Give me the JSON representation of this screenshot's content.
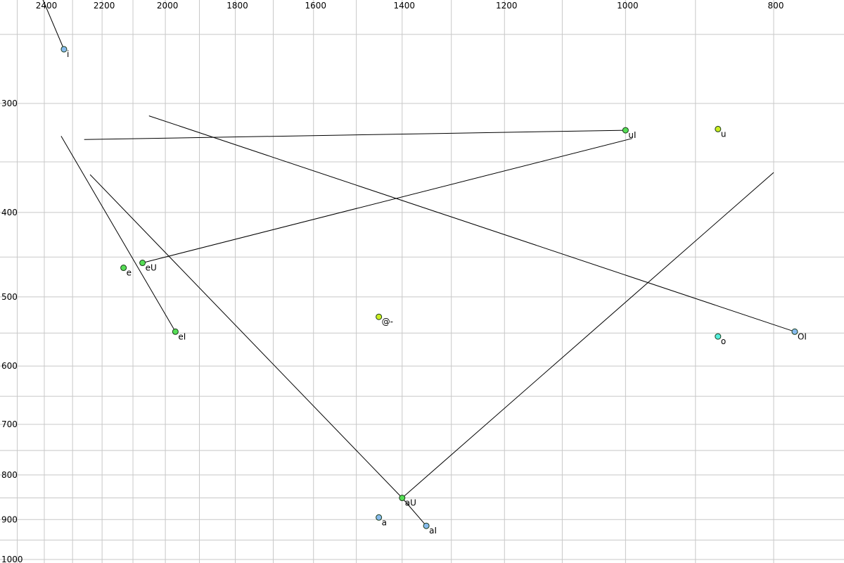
{
  "chart_data": {
    "type": "scatter",
    "title": "",
    "xlabel": "",
    "ylabel": "",
    "x_reversed": true,
    "y_reversed": true,
    "x_scale": "log",
    "y_scale": "log",
    "x_ticks": [
      2400,
      2200,
      2000,
      1800,
      1600,
      1400,
      1200,
      1000,
      800
    ],
    "y_ticks": [
      300,
      400,
      500,
      600,
      700,
      800,
      900,
      1000
    ],
    "grid": true,
    "colors": {
      "green": "#55dd55",
      "yellow": "#ccee22",
      "blue": "#88bbee",
      "cyan": "#55eedd"
    },
    "points": [
      {
        "label": "i",
        "f2": 2330,
        "f1": 260,
        "color": "blue"
      },
      {
        "label": "uI",
        "f2": 1000,
        "f1": 322,
        "color": "green"
      },
      {
        "label": "u",
        "f2": 870,
        "f1": 321,
        "color": "yellow"
      },
      {
        "label": "eU",
        "f2": 2070,
        "f1": 457,
        "color": "green"
      },
      {
        "label": "e",
        "f2": 2130,
        "f1": 463,
        "color": "green"
      },
      {
        "label": "eI",
        "f2": 1970,
        "f1": 548,
        "color": "green"
      },
      {
        "label": "@-",
        "f2": 1450,
        "f1": 527,
        "color": "yellow"
      },
      {
        "label": "OI",
        "f2": 775,
        "f1": 548,
        "color": "blue"
      },
      {
        "label": "o",
        "f2": 870,
        "f1": 555,
        "color": "cyan"
      },
      {
        "label": "aU",
        "f2": 1400,
        "f1": 850,
        "color": "green"
      },
      {
        "label": "a",
        "f2": 1450,
        "f1": 895,
        "color": "blue"
      },
      {
        "label": "aI",
        "f2": 1350,
        "f1": 915,
        "color": "blue"
      }
    ],
    "trajectories": [
      {
        "label": "i",
        "points": [
          [
            2440,
            215
          ],
          [
            2330,
            260
          ]
        ]
      },
      {
        "label": "uI",
        "points": [
          [
            2260,
            330
          ],
          [
            1000,
            322
          ]
        ]
      },
      {
        "label": "eU",
        "points": [
          [
            2070,
            457
          ],
          [
            990,
            329
          ]
        ]
      },
      {
        "label": "eI",
        "points": [
          [
            2340,
            327
          ],
          [
            1970,
            548
          ]
        ]
      },
      {
        "label": "aU",
        "points": [
          [
            2240,
            362
          ],
          [
            1400,
            850
          ]
        ]
      },
      {
        "label": "aU",
        "points": [
          [
            1400,
            850
          ],
          [
            800,
            360
          ]
        ]
      },
      {
        "label": "OI",
        "points": [
          [
            2050,
            310
          ],
          [
            775,
            548
          ]
        ]
      },
      {
        "label": "aI",
        "points": [
          [
            1400,
            850
          ],
          [
            1350,
            915
          ]
        ]
      }
    ]
  }
}
